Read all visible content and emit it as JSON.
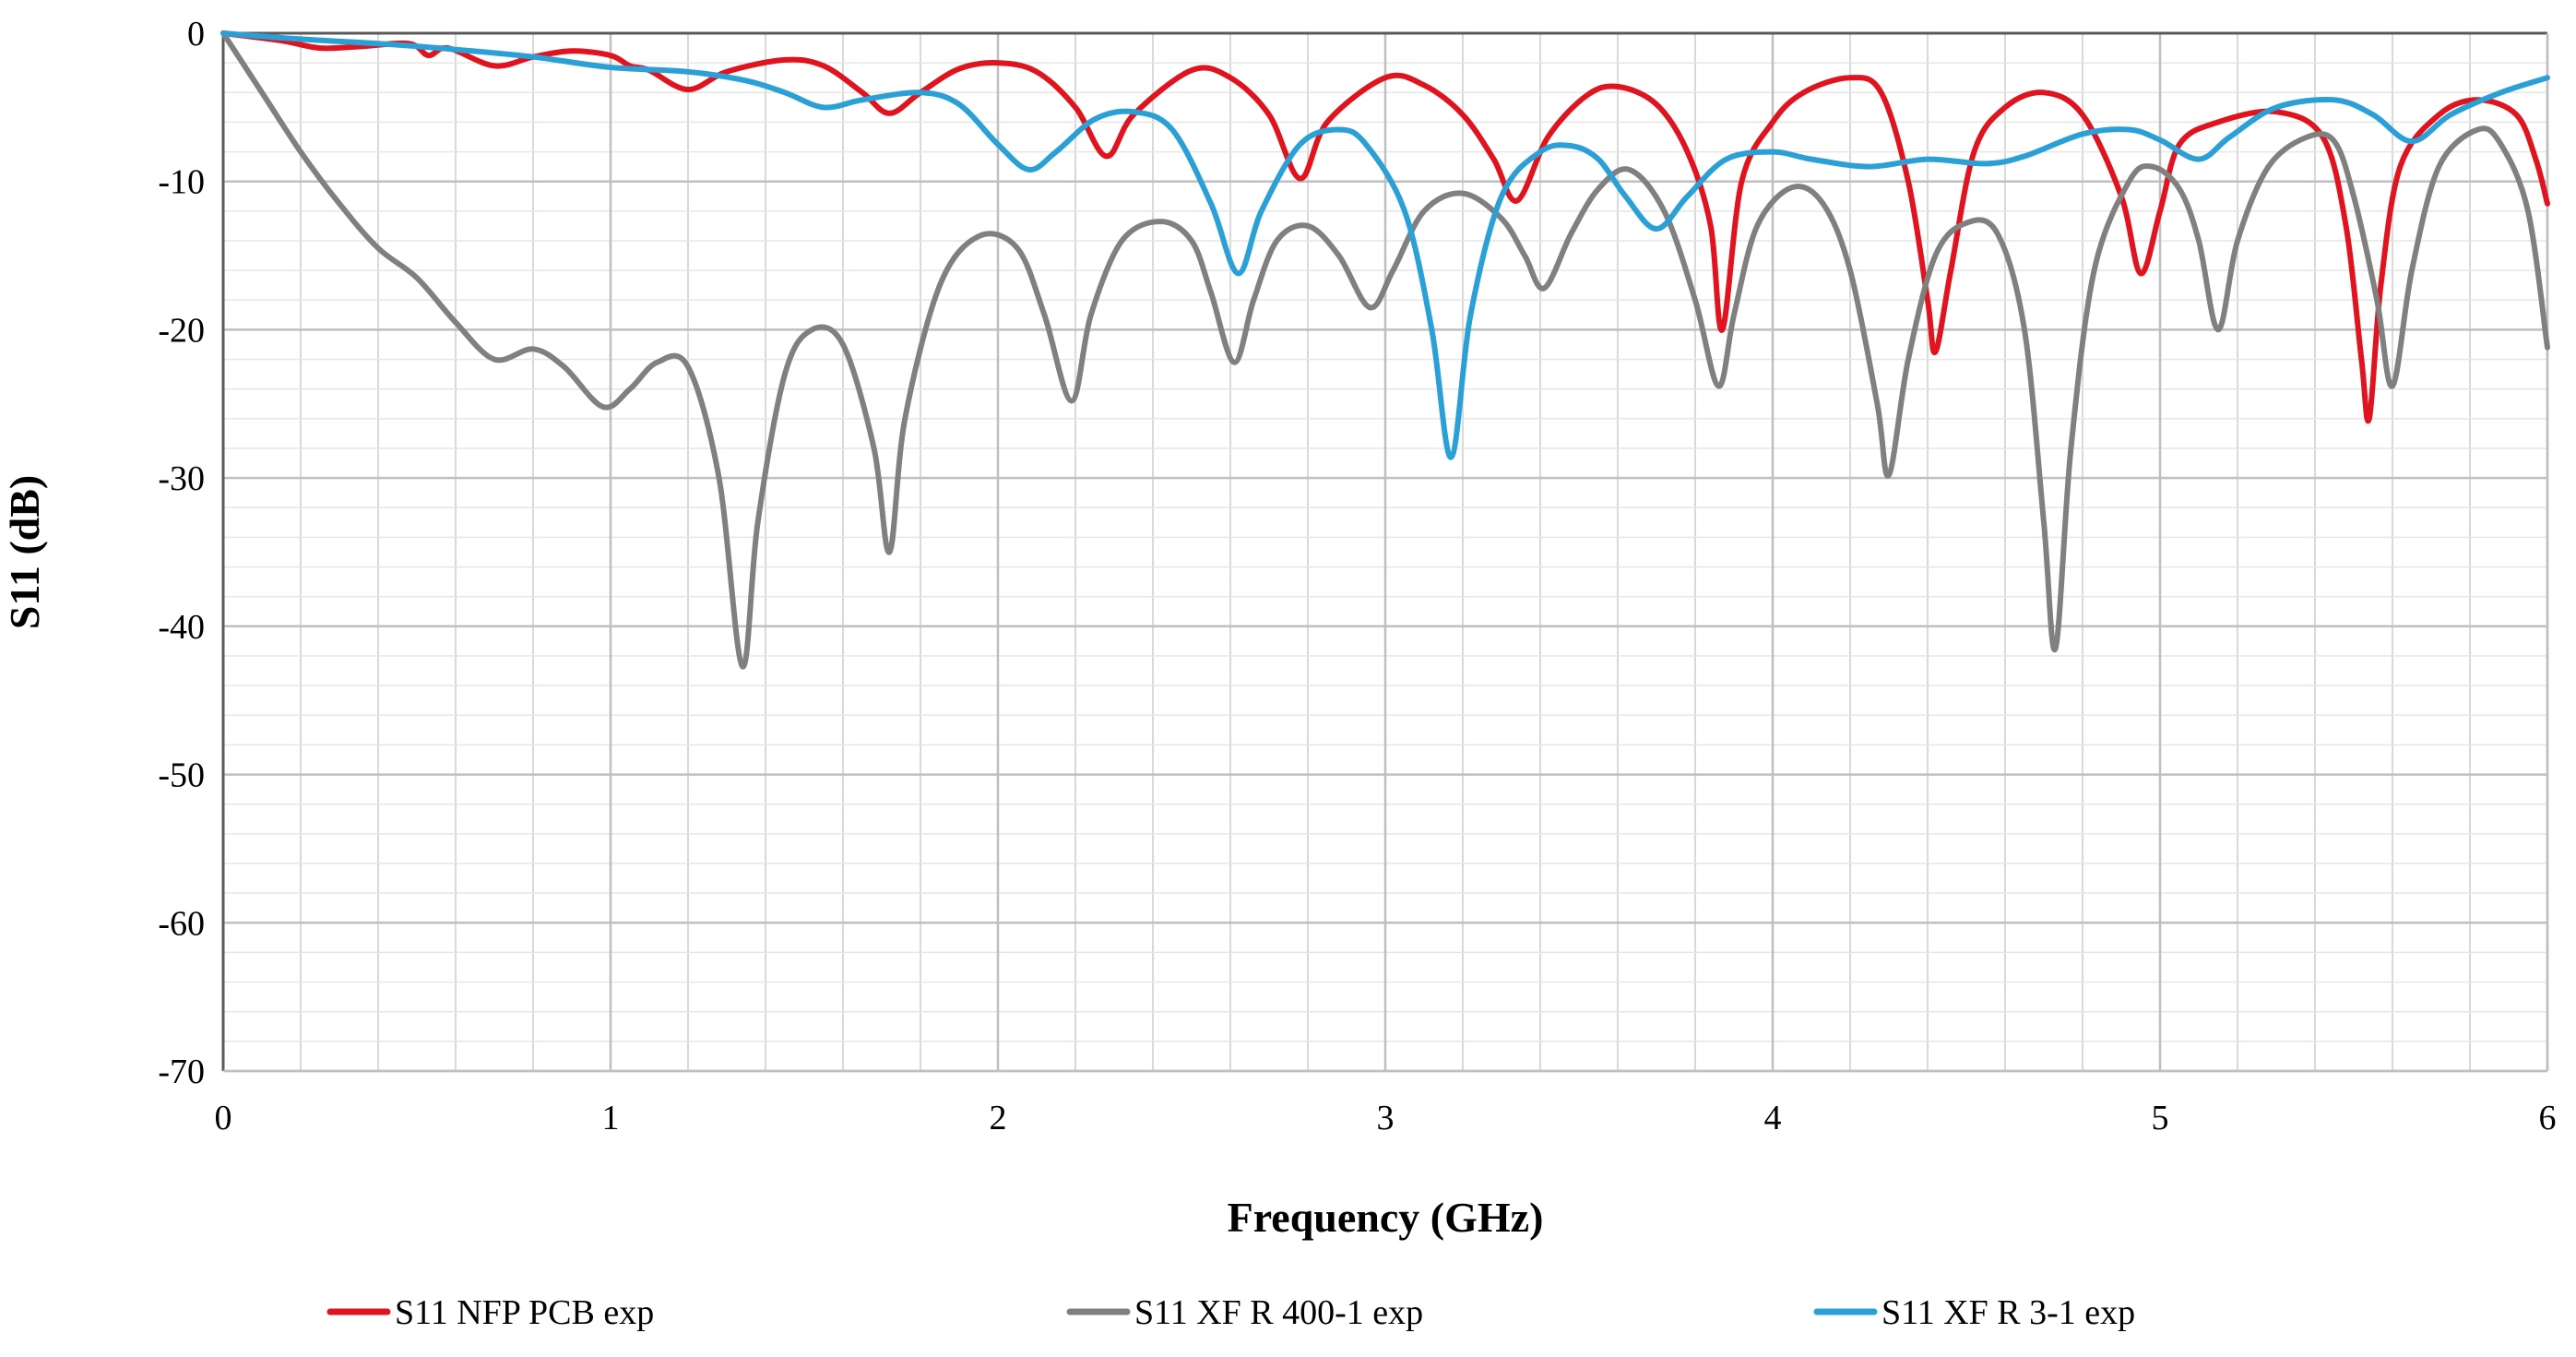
{
  "chart_data": {
    "type": "line",
    "title": "",
    "xlabel": "Frequency (GHz)",
    "ylabel": "S11 (dB)",
    "xlim": [
      0,
      6
    ],
    "ylim": [
      -70,
      0
    ],
    "x_ticks": [
      0,
      1,
      2,
      3,
      4,
      5,
      6
    ],
    "y_ticks": [
      0,
      -10,
      -20,
      -30,
      -40,
      -50,
      -60,
      -70
    ],
    "x_minor_step": 0.2,
    "y_minor_step": 2,
    "grid": true,
    "legend_position": "bottom",
    "series": [
      {
        "name": "S11 NFP PCB exp",
        "color": "#e0141e",
        "points": [
          [
            0,
            0
          ],
          [
            0.15,
            -0.5
          ],
          [
            0.25,
            -1
          ],
          [
            0.35,
            -0.9
          ],
          [
            0.48,
            -0.7
          ],
          [
            0.53,
            -1.5
          ],
          [
            0.58,
            -1
          ],
          [
            0.7,
            -2.2
          ],
          [
            0.8,
            -1.6
          ],
          [
            0.9,
            -1.2
          ],
          [
            1.0,
            -1.5
          ],
          [
            1.05,
            -2.2
          ],
          [
            1.1,
            -2.5
          ],
          [
            1.2,
            -3.8
          ],
          [
            1.3,
            -2.6
          ],
          [
            1.45,
            -1.8
          ],
          [
            1.55,
            -2.2
          ],
          [
            1.65,
            -4
          ],
          [
            1.72,
            -5.4
          ],
          [
            1.8,
            -4
          ],
          [
            1.9,
            -2.4
          ],
          [
            2.0,
            -2
          ],
          [
            2.1,
            -2.6
          ],
          [
            2.2,
            -5
          ],
          [
            2.28,
            -8.3
          ],
          [
            2.35,
            -5.5
          ],
          [
            2.5,
            -2.5
          ],
          [
            2.6,
            -3
          ],
          [
            2.7,
            -5.5
          ],
          [
            2.78,
            -9.8
          ],
          [
            2.85,
            -6
          ],
          [
            3.0,
            -3
          ],
          [
            3.1,
            -3.5
          ],
          [
            3.2,
            -5.5
          ],
          [
            3.28,
            -8.5
          ],
          [
            3.34,
            -11.3
          ],
          [
            3.42,
            -7
          ],
          [
            3.52,
            -4.2
          ],
          [
            3.6,
            -3.6
          ],
          [
            3.7,
            -4.8
          ],
          [
            3.78,
            -8
          ],
          [
            3.84,
            -13
          ],
          [
            3.87,
            -20
          ],
          [
            3.92,
            -10
          ],
          [
            4.0,
            -6
          ],
          [
            4.08,
            -4
          ],
          [
            4.2,
            -3
          ],
          [
            4.28,
            -4
          ],
          [
            4.35,
            -10
          ],
          [
            4.4,
            -18
          ],
          [
            4.42,
            -21.5
          ],
          [
            4.46,
            -16
          ],
          [
            4.52,
            -8
          ],
          [
            4.6,
            -5
          ],
          [
            4.7,
            -4
          ],
          [
            4.8,
            -5.5
          ],
          [
            4.9,
            -11
          ],
          [
            4.95,
            -16.2
          ],
          [
            5.0,
            -12
          ],
          [
            5.05,
            -7.5
          ],
          [
            5.15,
            -6
          ],
          [
            5.3,
            -5.3
          ],
          [
            5.42,
            -7
          ],
          [
            5.48,
            -13
          ],
          [
            5.52,
            -22
          ],
          [
            5.54,
            -26
          ],
          [
            5.57,
            -17
          ],
          [
            5.62,
            -9
          ],
          [
            5.72,
            -5.5
          ],
          [
            5.82,
            -4.5
          ],
          [
            5.92,
            -5.5
          ],
          [
            5.97,
            -8.5
          ],
          [
            6.0,
            -11.5
          ]
        ]
      },
      {
        "name": "S11 XF R 400-1 exp",
        "color": "#808080",
        "points": [
          [
            0,
            0
          ],
          [
            0.1,
            -4
          ],
          [
            0.2,
            -8
          ],
          [
            0.3,
            -11.5
          ],
          [
            0.4,
            -14.5
          ],
          [
            0.5,
            -16.5
          ],
          [
            0.6,
            -19.5
          ],
          [
            0.7,
            -22
          ],
          [
            0.8,
            -21.3
          ],
          [
            0.88,
            -22.5
          ],
          [
            0.98,
            -25.2
          ],
          [
            1.05,
            -24
          ],
          [
            1.12,
            -22.2
          ],
          [
            1.2,
            -22.5
          ],
          [
            1.28,
            -30
          ],
          [
            1.34,
            -42.7
          ],
          [
            1.38,
            -33
          ],
          [
            1.45,
            -23
          ],
          [
            1.52,
            -20
          ],
          [
            1.6,
            -21
          ],
          [
            1.68,
            -28
          ],
          [
            1.72,
            -35
          ],
          [
            1.76,
            -26
          ],
          [
            1.85,
            -17
          ],
          [
            1.95,
            -13.7
          ],
          [
            2.05,
            -14.5
          ],
          [
            2.12,
            -19
          ],
          [
            2.19,
            -24.8
          ],
          [
            2.24,
            -19
          ],
          [
            2.32,
            -14
          ],
          [
            2.42,
            -12.7
          ],
          [
            2.5,
            -14
          ],
          [
            2.55,
            -17.5
          ],
          [
            2.61,
            -22.2
          ],
          [
            2.66,
            -18
          ],
          [
            2.72,
            -14
          ],
          [
            2.8,
            -13
          ],
          [
            2.88,
            -15
          ],
          [
            2.96,
            -18.5
          ],
          [
            3.02,
            -16
          ],
          [
            3.1,
            -12
          ],
          [
            3.2,
            -10.8
          ],
          [
            3.3,
            -12.5
          ],
          [
            3.36,
            -15
          ],
          [
            3.41,
            -17.2
          ],
          [
            3.48,
            -13.5
          ],
          [
            3.55,
            -10.5
          ],
          [
            3.63,
            -9.2
          ],
          [
            3.72,
            -12
          ],
          [
            3.8,
            -18
          ],
          [
            3.86,
            -23.8
          ],
          [
            3.9,
            -19
          ],
          [
            3.96,
            -13
          ],
          [
            4.05,
            -10.4
          ],
          [
            4.13,
            -11.5
          ],
          [
            4.2,
            -16
          ],
          [
            4.27,
            -25
          ],
          [
            4.3,
            -29.8
          ],
          [
            4.35,
            -22
          ],
          [
            4.42,
            -15
          ],
          [
            4.5,
            -12.8
          ],
          [
            4.58,
            -13.5
          ],
          [
            4.65,
            -20
          ],
          [
            4.7,
            -33
          ],
          [
            4.73,
            -41.5
          ],
          [
            4.77,
            -28
          ],
          [
            4.83,
            -16
          ],
          [
            4.92,
            -10
          ],
          [
            4.98,
            -9
          ],
          [
            5.05,
            -10.5
          ],
          [
            5.1,
            -14
          ],
          [
            5.15,
            -20
          ],
          [
            5.2,
            -14
          ],
          [
            5.28,
            -9
          ],
          [
            5.38,
            -7
          ],
          [
            5.45,
            -7.3
          ],
          [
            5.5,
            -11
          ],
          [
            5.56,
            -18
          ],
          [
            5.6,
            -23.8
          ],
          [
            5.65,
            -16
          ],
          [
            5.72,
            -9
          ],
          [
            5.82,
            -6.5
          ],
          [
            5.88,
            -7.5
          ],
          [
            5.95,
            -12
          ],
          [
            6.0,
            -21.2
          ]
        ]
      },
      {
        "name": "S11 XF R 3-1 exp",
        "color": "#2aa0d6",
        "points": [
          [
            0,
            0
          ],
          [
            0.2,
            -0.4
          ],
          [
            0.4,
            -0.7
          ],
          [
            0.6,
            -1.1
          ],
          [
            0.8,
            -1.6
          ],
          [
            1.0,
            -2.3
          ],
          [
            1.2,
            -2.6
          ],
          [
            1.35,
            -3.2
          ],
          [
            1.45,
            -4
          ],
          [
            1.55,
            -5
          ],
          [
            1.65,
            -4.5
          ],
          [
            1.8,
            -4
          ],
          [
            1.9,
            -4.8
          ],
          [
            2.0,
            -7.5
          ],
          [
            2.08,
            -9.2
          ],
          [
            2.15,
            -8
          ],
          [
            2.25,
            -5.8
          ],
          [
            2.35,
            -5.3
          ],
          [
            2.45,
            -6.5
          ],
          [
            2.55,
            -11.5
          ],
          [
            2.62,
            -16.2
          ],
          [
            2.68,
            -12
          ],
          [
            2.78,
            -7.5
          ],
          [
            2.88,
            -6.5
          ],
          [
            2.95,
            -7.5
          ],
          [
            3.05,
            -12
          ],
          [
            3.12,
            -20
          ],
          [
            3.17,
            -28.6
          ],
          [
            3.22,
            -19
          ],
          [
            3.3,
            -11
          ],
          [
            3.4,
            -8
          ],
          [
            3.48,
            -7.6
          ],
          [
            3.55,
            -8.5
          ],
          [
            3.62,
            -11
          ],
          [
            3.7,
            -13.2
          ],
          [
            3.78,
            -11
          ],
          [
            3.88,
            -8.5
          ],
          [
            4.0,
            -8
          ],
          [
            4.1,
            -8.5
          ],
          [
            4.25,
            -9
          ],
          [
            4.4,
            -8.5
          ],
          [
            4.55,
            -8.8
          ],
          [
            4.65,
            -8.3
          ],
          [
            4.8,
            -6.8
          ],
          [
            4.92,
            -6.5
          ],
          [
            5.0,
            -7.2
          ],
          [
            5.1,
            -8.5
          ],
          [
            5.18,
            -7
          ],
          [
            5.3,
            -5
          ],
          [
            5.45,
            -4.5
          ],
          [
            5.55,
            -5.5
          ],
          [
            5.65,
            -7.3
          ],
          [
            5.75,
            -5.5
          ],
          [
            5.88,
            -4
          ],
          [
            6.0,
            -3
          ]
        ]
      }
    ]
  }
}
